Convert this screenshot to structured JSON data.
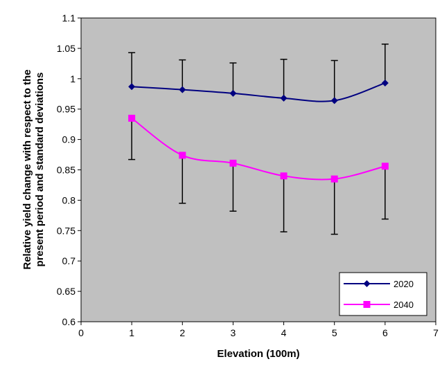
{
  "chart_data": {
    "type": "line",
    "xlabel": "Elevation (100m)",
    "ylabel": [
      "Relative yield change with respect to the",
      "present period and standard deviations"
    ],
    "xlim": [
      0,
      7
    ],
    "ylim": [
      0.6,
      1.1
    ],
    "x_ticks": [
      "0",
      "1",
      "2",
      "3",
      "4",
      "5",
      "6",
      "7"
    ],
    "y_ticks": [
      "0.6",
      "0.65",
      "0.7",
      "0.75",
      "0.8",
      "0.85",
      "0.9",
      "0.95",
      "1",
      "1.05",
      "1.1"
    ],
    "x_tick_values": [
      0,
      1,
      2,
      3,
      4,
      5,
      6,
      7
    ],
    "y_tick_values": [
      0.6,
      0.65,
      0.7,
      0.75,
      0.8,
      0.85,
      0.9,
      0.95,
      1.0,
      1.05,
      1.1
    ],
    "grid": false,
    "legend_position": "bottom-right",
    "plot_background": "#c0c0c0",
    "series": [
      {
        "name": "2020",
        "color": "#000080",
        "marker": "diamond",
        "x": [
          1,
          2,
          3,
          4,
          5,
          6
        ],
        "y": [
          0.987,
          0.982,
          0.976,
          0.968,
          0.964,
          0.993
        ],
        "error_upper": [
          1.043,
          1.031,
          1.026,
          1.032,
          1.03,
          1.057
        ],
        "smooth": true
      },
      {
        "name": "2040",
        "color": "#ff00ff",
        "marker": "square",
        "x": [
          1,
          2,
          3,
          4,
          5,
          6
        ],
        "y": [
          0.935,
          0.874,
          0.861,
          0.84,
          0.835,
          0.856
        ],
        "error_lower": [
          0.867,
          0.795,
          0.782,
          0.748,
          0.744,
          0.769
        ],
        "smooth": true
      }
    ]
  }
}
